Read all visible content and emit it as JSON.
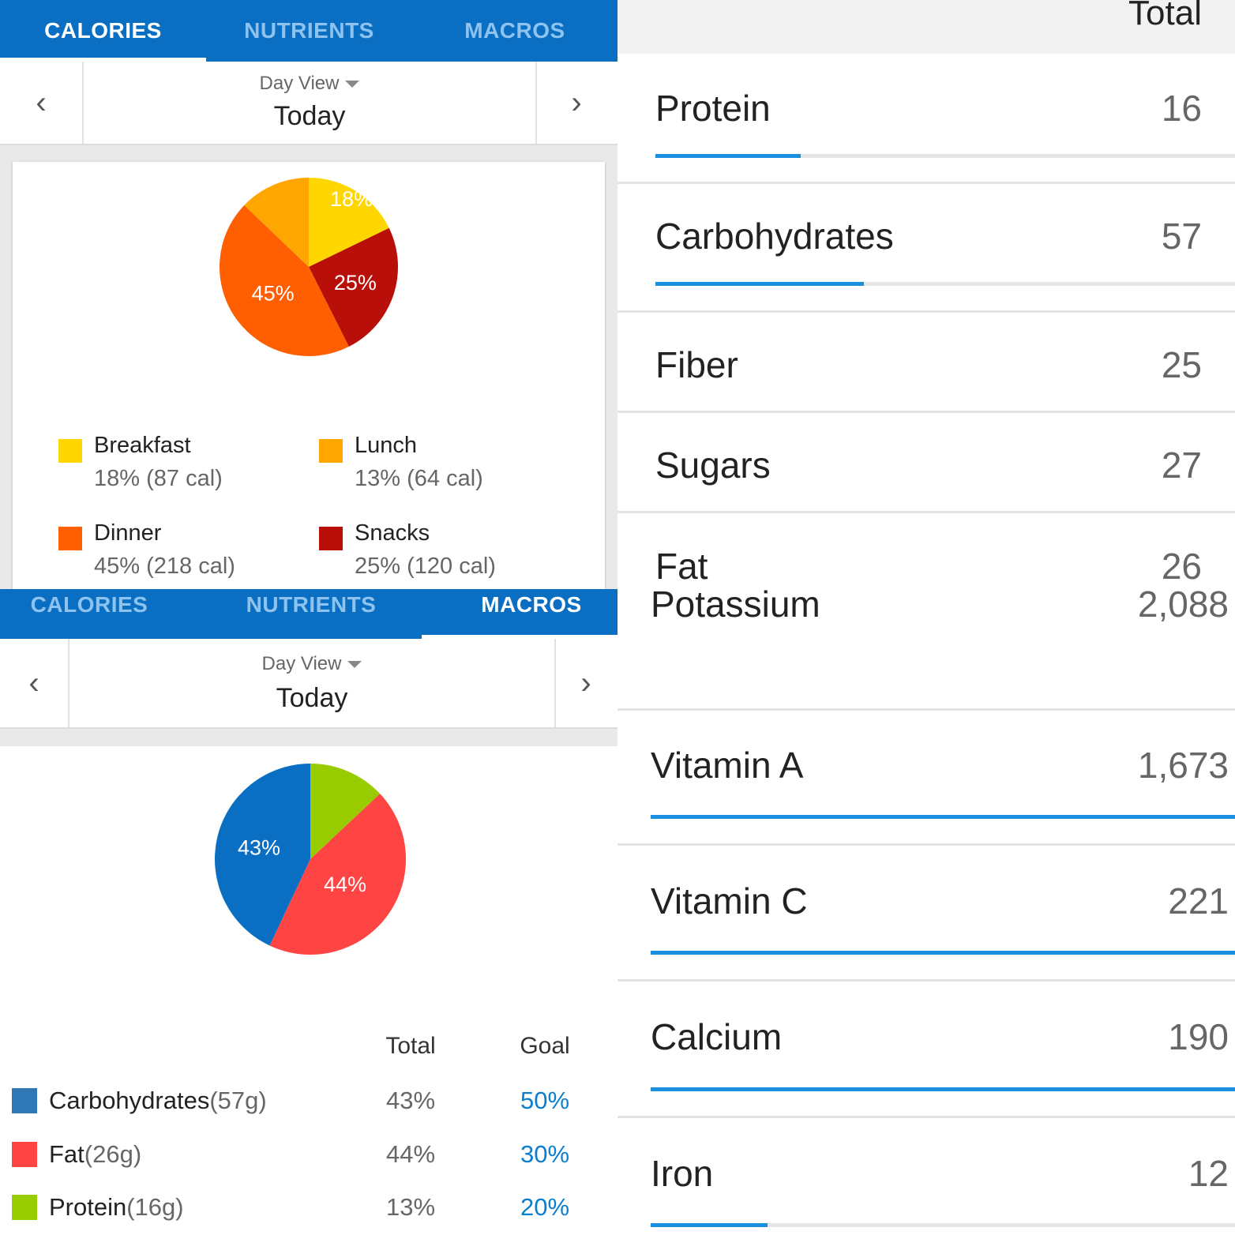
{
  "calories_panel": {
    "tabs": [
      "CALORIES",
      "NUTRIENTS",
      "MACROS"
    ],
    "active_tab": "CALORIES",
    "day_view_label": "Day View",
    "date_label": "Today",
    "chart_data": {
      "type": "pie",
      "title": "",
      "slices": [
        {
          "name": "Breakfast",
          "percent": 18,
          "label": "18%",
          "color": "#ffd600"
        },
        {
          "name": "Snacks",
          "percent": 25,
          "label": "25%",
          "color": "#b80f0a"
        },
        {
          "name": "Dinner",
          "percent": 45,
          "label": "45%",
          "color": "#ff5f00"
        },
        {
          "name": "Lunch",
          "percent": 13,
          "label": "",
          "color": "#ffa600"
        }
      ]
    },
    "legend": [
      {
        "name": "Breakfast",
        "value": "18% (87 cal)",
        "color": "#ffd600"
      },
      {
        "name": "Lunch",
        "value": "13% (64 cal)",
        "color": "#ffa600"
      },
      {
        "name": "Dinner",
        "value": "45% (218 cal)",
        "color": "#ff5f00"
      },
      {
        "name": "Snacks",
        "value": "25% (120 cal)",
        "color": "#b80f0a"
      }
    ]
  },
  "macros_panel": {
    "tabs": [
      "CALORIES",
      "NUTRIENTS",
      "MACROS"
    ],
    "active_tab": "MACROS",
    "day_view_label": "Day View",
    "date_label": "Today",
    "chart_data": {
      "type": "pie",
      "title": "",
      "slices": [
        {
          "name": "Protein",
          "percent": 13,
          "label": "",
          "color": "#99cc00"
        },
        {
          "name": "Fat",
          "percent": 44,
          "label": "44%",
          "color": "#ff4444"
        },
        {
          "name": "Carbohydrates",
          "percent": 43,
          "label": "43%",
          "color": "#0a6fc2"
        }
      ]
    },
    "table": {
      "headers": {
        "total": "Total",
        "goal": "Goal"
      },
      "rows": [
        {
          "name": "Carbohydrates",
          "amount": "(57g)",
          "total": "43%",
          "goal": "50%",
          "color": "#2f78b5"
        },
        {
          "name": "Fat",
          "amount": "(26g)",
          "total": "44%",
          "goal": "30%",
          "color": "#ff4444"
        },
        {
          "name": "Protein",
          "amount": "(16g)",
          "total": "13%",
          "goal": "20%",
          "color": "#99cc00"
        }
      ]
    }
  },
  "nutrients_panel": {
    "total_header": "Total",
    "rows": [
      {
        "name": "Protein",
        "value": "16",
        "progress": 0.25
      },
      {
        "name": "Carbohydrates",
        "value": "57",
        "progress": 0.36
      },
      {
        "name": "Fiber",
        "value": "25"
      },
      {
        "name": "Sugars",
        "value": "27"
      },
      {
        "name": "Fat",
        "value": "26"
      },
      {
        "name": "Potassium",
        "value": "2,088"
      },
      {
        "name": "Vitamin A",
        "value": "1,673",
        "progress": 1.0
      },
      {
        "name": "Vitamin C",
        "value": "221",
        "progress": 1.0
      },
      {
        "name": "Calcium",
        "value": "190",
        "progress": 1.0
      },
      {
        "name": "Iron",
        "value": "12",
        "progress": 0.2
      }
    ]
  }
}
